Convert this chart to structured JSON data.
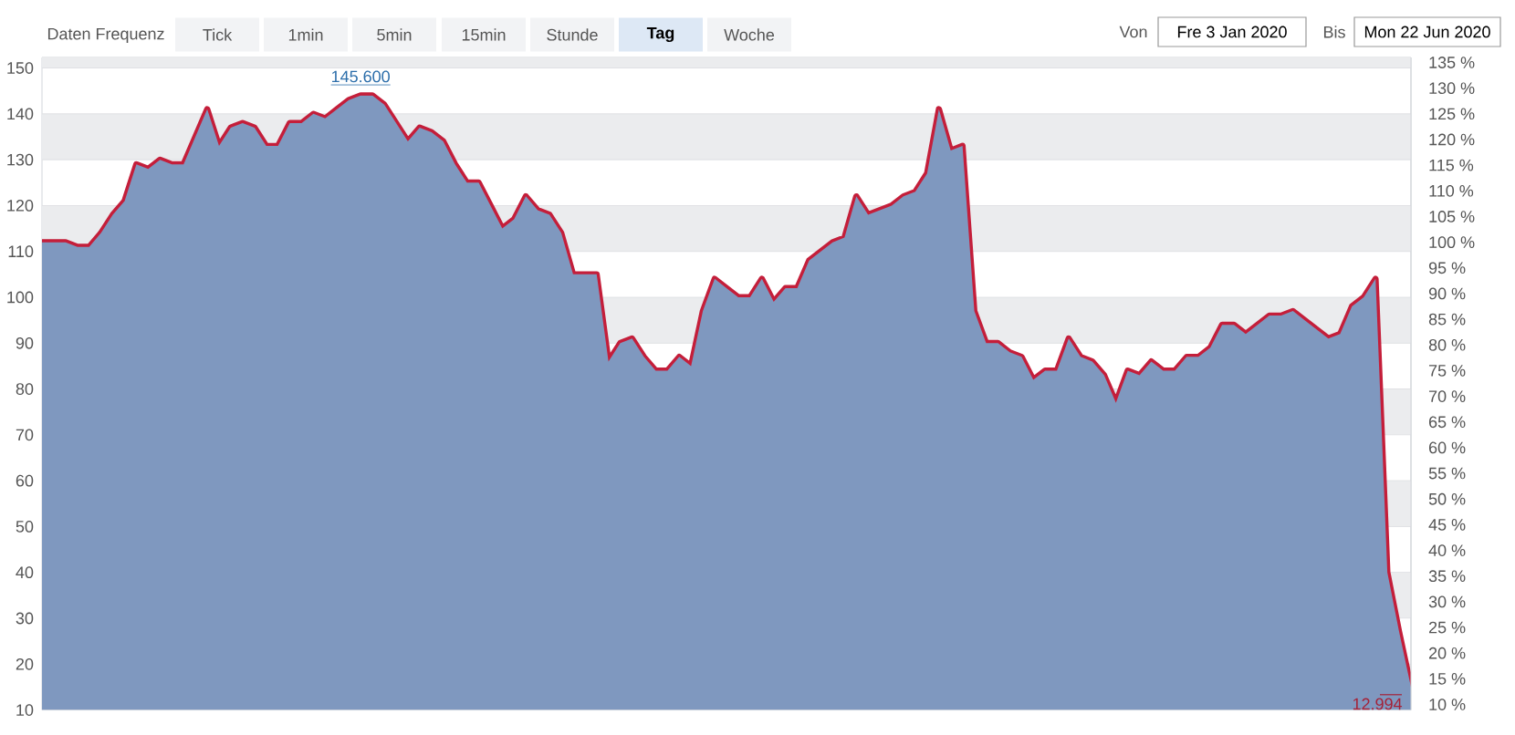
{
  "chart_data": {
    "type": "area",
    "annotations": [
      "Daten Frequenz",
      "Tick",
      "1min",
      "5min",
      "15min",
      "Stunde",
      "Tag",
      "Woche",
      "Von",
      "Fre 3 Jan 2020",
      "Bis",
      "Mon 22 Jun 2020",
      {
        "text": "145.600",
        "y": 145.6
      },
      "12.994"
    ],
    "categories": [
      null,
      null,
      null,
      null,
      null,
      null,
      null,
      null,
      null,
      null,
      null,
      null,
      null,
      null,
      null,
      null,
      null,
      null,
      null,
      null,
      null,
      null,
      null,
      null,
      null,
      null,
      null,
      null,
      null,
      null,
      null,
      null,
      null,
      null,
      null,
      null,
      null,
      null,
      null,
      null,
      null,
      null,
      null,
      null,
      null,
      null,
      null,
      null,
      null,
      null,
      null,
      null,
      null,
      null,
      null,
      null,
      null,
      null,
      null,
      null,
      null,
      null,
      null,
      null,
      null,
      null,
      null,
      null,
      null,
      null,
      null,
      null,
      null,
      null,
      null,
      null,
      null,
      null,
      null,
      null,
      null,
      null,
      null,
      null,
      null,
      null,
      null,
      null,
      null,
      null,
      null,
      null,
      null,
      null,
      null,
      null,
      null,
      null,
      null,
      null,
      null,
      null,
      null,
      null,
      null,
      null,
      null,
      null,
      null,
      null,
      null,
      null,
      null,
      null,
      null,
      null,
      null
    ],
    "series": [
      {
        "type": "line",
        "color": "#c41e3a",
        "values": [
          112,
          112,
          112,
          111,
          111,
          114,
          118,
          121,
          129,
          128,
          130,
          129,
          129,
          135,
          141,
          133,
          137,
          138,
          137,
          133,
          133,
          138,
          138,
          140,
          139,
          141,
          143,
          144,
          144,
          142,
          138,
          134,
          137,
          136,
          134,
          129,
          125,
          125,
          120,
          115,
          117,
          122,
          119,
          118,
          114,
          105,
          105,
          105,
          86,
          90,
          91,
          87,
          84,
          84,
          87,
          85,
          97,
          104,
          102,
          100,
          100,
          104,
          99,
          102,
          102,
          108,
          110,
          112,
          113,
          122,
          118,
          119,
          120,
          122,
          123,
          127,
          141,
          132,
          133,
          97,
          90,
          90,
          88,
          87,
          82,
          84,
          84,
          91,
          87,
          86,
          83,
          77,
          84,
          83,
          86,
          84,
          84,
          87,
          87,
          89,
          94,
          94,
          92,
          94,
          96,
          96,
          97,
          95,
          93,
          91,
          92,
          98,
          100,
          104,
          40,
          27,
          15
        ]
      },
      {
        "color": "#7f98bf",
        "values": [
          112,
          112,
          112,
          111,
          111,
          114,
          118,
          121,
          129,
          128,
          130,
          129,
          129,
          135,
          141,
          133,
          137,
          138,
          137,
          133,
          133,
          138,
          138,
          140,
          139,
          141,
          143,
          144,
          144,
          142,
          138,
          134,
          137,
          136,
          134,
          129,
          125,
          125,
          120,
          115,
          117,
          122,
          119,
          118,
          114,
          105,
          105,
          105,
          86,
          90,
          91,
          87,
          84,
          84,
          87,
          85,
          97,
          104,
          102,
          100,
          100,
          104,
          99,
          102,
          102,
          108,
          110,
          112,
          113,
          122,
          118,
          119,
          120,
          122,
          123,
          127,
          141,
          132,
          133,
          97,
          90,
          90,
          88,
          87,
          82,
          84,
          84,
          91,
          87,
          86,
          83,
          77,
          84,
          83,
          86,
          84,
          84,
          87,
          87,
          89,
          94,
          94,
          92,
          94,
          96,
          96,
          97,
          95,
          93,
          91,
          92,
          98,
          100,
          104,
          40,
          27,
          15
        ]
      }
    ],
    "ylim": [
      10,
      152.3
    ],
    "yticks": [
      10,
      20,
      30,
      40,
      50,
      60,
      70,
      80,
      90,
      100,
      110,
      120,
      130,
      140,
      150
    ],
    "y2lim": [
      8.93,
      135.98
    ],
    "y2ticks": [
      {
        "value": 10,
        "label": "10 %"
      },
      {
        "value": 15,
        "label": "15 %"
      },
      {
        "value": 20,
        "label": "20 %"
      },
      {
        "value": 25,
        "label": "25 %"
      },
      {
        "value": 30,
        "label": "30 %"
      },
      {
        "value": 35,
        "label": "35 %"
      },
      {
        "value": 40,
        "label": "40 %"
      },
      {
        "value": 45,
        "label": "45 %"
      },
      {
        "value": 50,
        "label": "50 %"
      },
      {
        "value": 55,
        "label": "55 %"
      },
      {
        "value": 60,
        "label": "60 %"
      },
      {
        "value": 65,
        "label": "65 %"
      },
      {
        "value": 70,
        "label": "70 %"
      },
      {
        "value": 75,
        "label": "75 %"
      },
      {
        "value": 80,
        "label": "80 %"
      },
      {
        "value": 85,
        "label": "85 %"
      },
      {
        "value": 90,
        "label": "90 %"
      },
      {
        "value": 95,
        "label": "95 %"
      },
      {
        "value": 100,
        "label": "100 %"
      },
      {
        "value": 105,
        "label": "105 %"
      },
      {
        "value": 110,
        "label": "110 %"
      },
      {
        "value": 115,
        "label": "115 %"
      },
      {
        "value": 120,
        "label": "120 %"
      },
      {
        "value": 125,
        "label": "125 %"
      },
      {
        "value": 130,
        "label": "130 %"
      },
      {
        "value": 135,
        "label": "135 %"
      }
    ],
    "grid": "y",
    "tick_labels": "y"
  }
}
